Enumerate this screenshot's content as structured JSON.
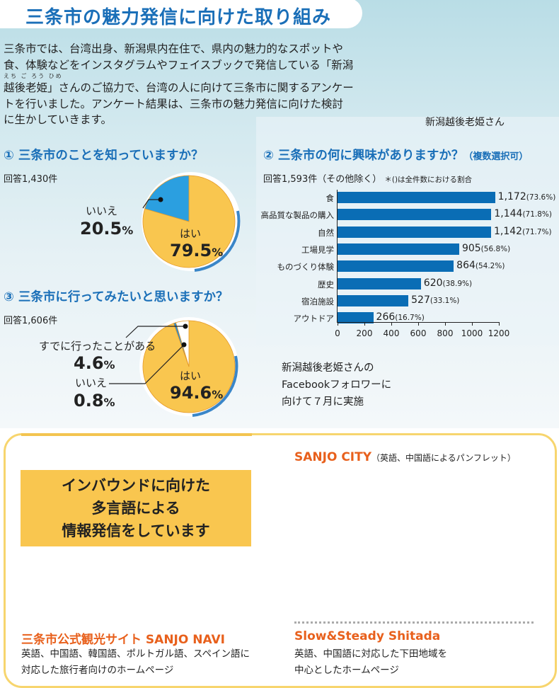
{
  "title": "三条市の魅力発信に向けた取り組み",
  "intro": [
    "三条市では、台湾出身、新潟県内在住で、県内の魅力的なスポットや",
    "食、体験などをインスタグラムやフェイスブックで発信している「新潟",
    "越後老姫」さんのご協力で、台湾の人に向けて三条市に関するアンケー",
    "トを行いました。アンケート結果は、三条市の魅力発信に向けた検討",
    "に生かしていきます。"
  ],
  "ruby": "えち ご ろう ひめ",
  "hime_caption": "新潟越後老姫さん",
  "q1": {
    "title": "① 三条市のことを知っていますか？",
    "count": "回答1,430件",
    "no_label": "いいえ",
    "no_pct": "20.5",
    "yes_label": "はい",
    "yes_pct": "79.5",
    "pct_sign": "%"
  },
  "q3": {
    "title": "③ 三条市に行ってみたいと思いますか？",
    "count": "回答1,606件",
    "been_label": "すでに行ったことがある",
    "been_pct": "4.6",
    "no_label": "いいえ",
    "no_pct": "0.8",
    "yes_label": "はい",
    "yes_pct": "94.6",
    "pct_sign": "%"
  },
  "chart_data": [
    {
      "type": "pie",
      "title": "三条市のことを知っていますか？",
      "labels": [
        "はい",
        "いいえ"
      ],
      "values": [
        79.5,
        20.5
      ],
      "colors": [
        "#f9c64f",
        "#2b9fe0"
      ]
    },
    {
      "type": "pie",
      "title": "三条市に行ってみたいと思いますか？",
      "labels": [
        "はい",
        "いいえ",
        "すでに行ったことがある"
      ],
      "values": [
        94.6,
        0.8,
        4.6
      ],
      "colors": [
        "#f9c64f",
        "#2b8ad0",
        "#ffffff"
      ]
    },
    {
      "type": "bar",
      "orientation": "horizontal",
      "title": "② 三条市の何に興味がありますか？",
      "title_note": "（複数選択可）",
      "subtitle": "回答1,593件（その他除く）",
      "note": "＊()は全件数における割合",
      "categories": [
        "食",
        "高品質な製品の購入",
        "自然",
        "工場見学",
        "ものづくり体験",
        "歴史",
        "宿泊施設",
        "アウトドア"
      ],
      "values": [
        1172,
        1144,
        1142,
        905,
        864,
        620,
        527,
        266
      ],
      "value_labels": [
        "1,172",
        "1,144",
        "1,142",
        "905",
        "864",
        "620",
        "527",
        "266"
      ],
      "percent_labels": [
        "(73.6%)",
        "(71.8%)",
        "(71.7%)",
        "(56.8%)",
        "(54.2%)",
        "(38.9%)",
        "(33.1%)",
        "(16.7%)"
      ],
      "xlim": [
        0,
        1200
      ],
      "xticks": [
        "0",
        "200",
        "400",
        "600",
        "800",
        "1000",
        "1200"
      ],
      "color": "#0a6db5"
    }
  ],
  "fb_note": [
    "新潟越後老姫さんの",
    "Facebookフォロワーに",
    "向けて７月に実施"
  ],
  "inbound": [
    "インバウンドに向けた",
    "多言語による",
    "情報発信をしています"
  ],
  "sanjo_city": {
    "title": "SANJO CITY",
    "note": "（英語、中国語によるパンフレット）"
  },
  "sanjo_navi": {
    "title": "三条市公式観光サイト SANJO NAVI",
    "desc": [
      "英語、中国語、韓国語、ポルトガル語、スペイン語に",
      "対応した旅行者向けのホームページ"
    ]
  },
  "shitada": {
    "title": "Slow&Steady Shitada",
    "desc": [
      "英語、中国語に対応した下田地域を",
      "中心としたホームページ"
    ]
  }
}
